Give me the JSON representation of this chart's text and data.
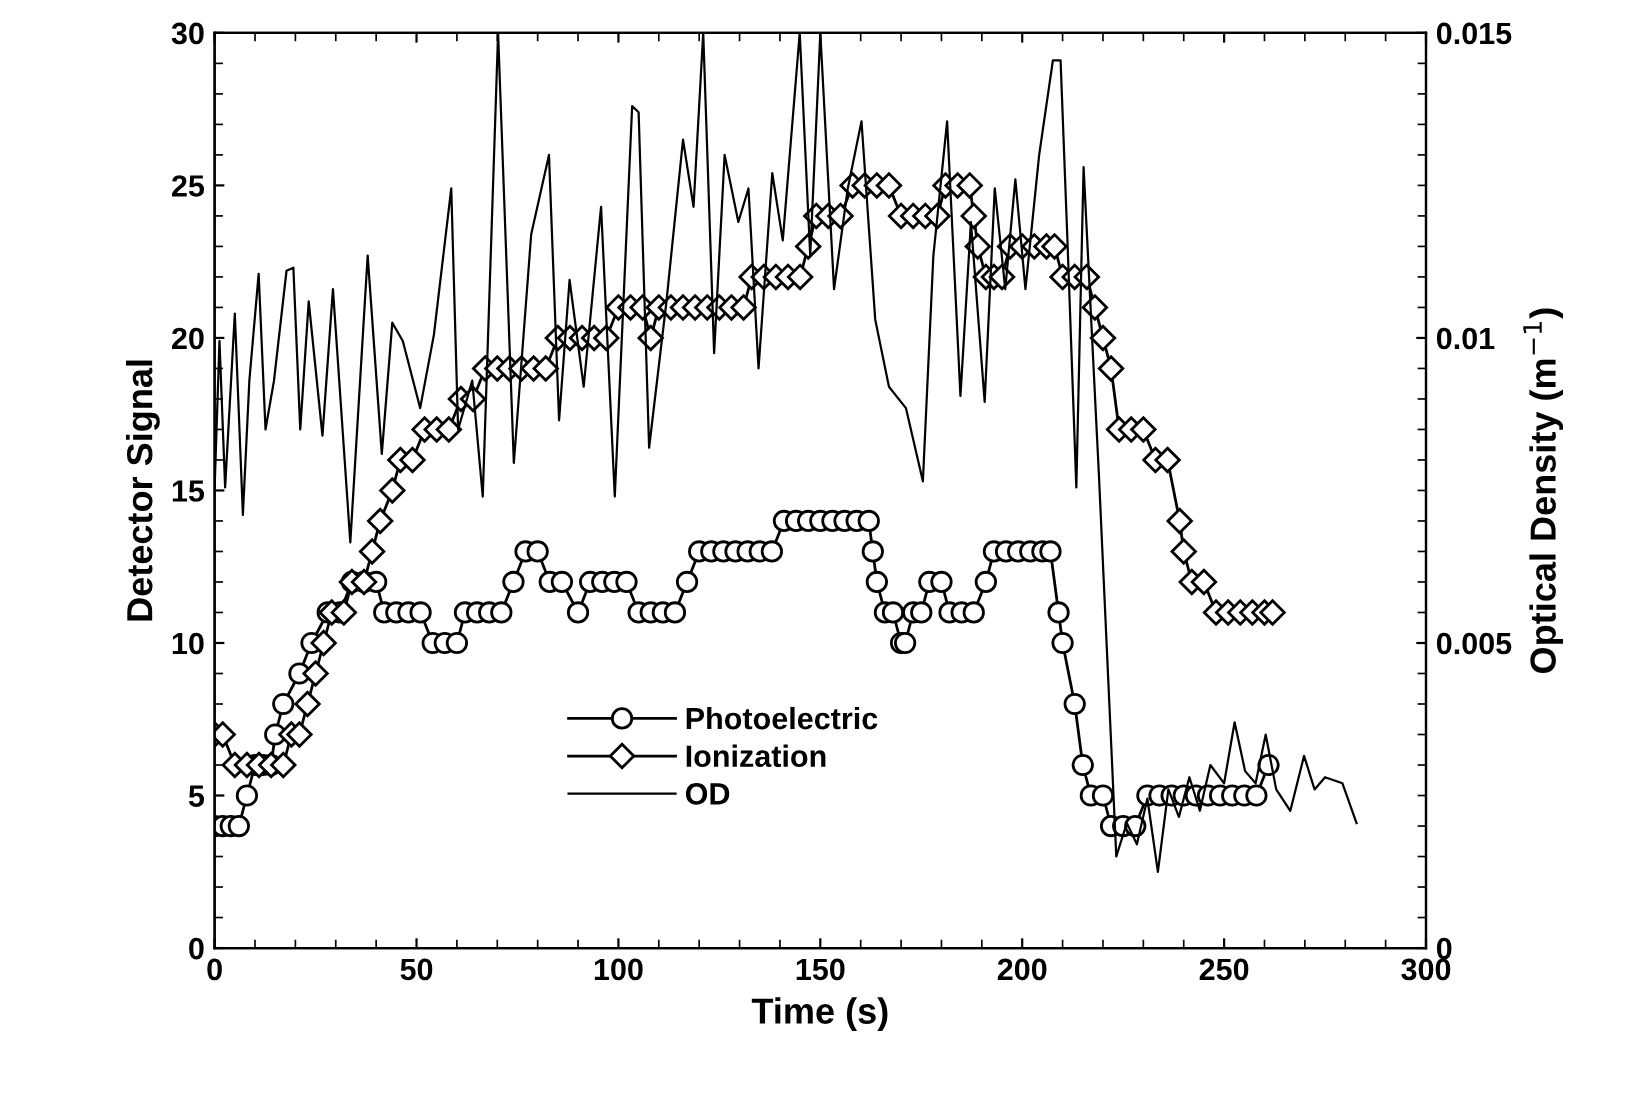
{
  "chart_data": {
    "type": "line",
    "xlabel": "Time (s)",
    "ylabel": "Detector Signal",
    "y2label": "Optical Density (m$^{−1}$)",
    "xlim": [
      0,
      300
    ],
    "xticks": [
      0,
      50,
      100,
      150,
      200,
      250,
      300
    ],
    "ylim": [
      0,
      30
    ],
    "yticks": [
      0,
      5,
      10,
      15,
      20,
      25,
      30
    ],
    "y2lim": [
      0,
      0.015
    ],
    "y2ticks": [
      0,
      0.005,
      0.01,
      0.015
    ],
    "grid": false,
    "legend": "bottom",
    "series": [
      {
        "name": "Photoelectric",
        "color": "#000000",
        "marker": "circle",
        "x": [
          0,
          2,
          4,
          6,
          8,
          10,
          12,
          14,
          15,
          17,
          21,
          24,
          28,
          31,
          34,
          37,
          40,
          42,
          45,
          48,
          51,
          54,
          57,
          60,
          62,
          65,
          68,
          71,
          74,
          77,
          80,
          83,
          86,
          90,
          93,
          96,
          99,
          102,
          105,
          108,
          111,
          114,
          117,
          120,
          123,
          126,
          129,
          132,
          135,
          138,
          141,
          144,
          147,
          150,
          153,
          156,
          159,
          162,
          163,
          164,
          166,
          168,
          170,
          171,
          173,
          175,
          177,
          180,
          182,
          185,
          188,
          191,
          193,
          196,
          199,
          202,
          205,
          207,
          209,
          210,
          213,
          215,
          217,
          220,
          222,
          225,
          228,
          231,
          234,
          237,
          240,
          243,
          246,
          249,
          252,
          255,
          258,
          261
        ],
        "values": [
          4,
          4,
          4,
          4,
          5,
          6,
          6,
          6,
          7,
          8,
          9,
          10,
          11,
          11,
          12,
          12,
          12,
          11,
          11,
          11,
          11,
          10,
          10,
          10,
          11,
          11,
          11,
          11,
          12,
          13,
          13,
          12,
          12,
          11,
          12,
          12,
          12,
          12,
          11,
          11,
          11,
          11,
          12,
          13,
          13,
          13,
          13,
          13,
          13,
          13,
          14,
          14,
          14,
          14,
          14,
          14,
          14,
          14,
          13,
          12,
          11,
          11,
          10,
          10,
          11,
          11,
          12,
          12,
          11,
          11,
          11,
          12,
          13,
          13,
          13,
          13,
          13,
          13,
          11,
          10,
          8,
          6,
          5,
          5,
          4,
          4,
          4,
          5,
          5,
          5,
          5,
          5,
          5,
          5,
          5,
          5,
          5,
          6
        ]
      },
      {
        "name": "Ionization",
        "color": "#000000",
        "marker": "diamond",
        "x": [
          0,
          2,
          5,
          8,
          11,
          14,
          17,
          19,
          21,
          23,
          25,
          27,
          29,
          32,
          34,
          37,
          39,
          41,
          44,
          46,
          49,
          52,
          55,
          58,
          61,
          64,
          67,
          70,
          73,
          76,
          79,
          82,
          85,
          88,
          91,
          94,
          97,
          100,
          103,
          106,
          108,
          110,
          113,
          116,
          119,
          122,
          125,
          128,
          131,
          133,
          136,
          139,
          142,
          145,
          147,
          149,
          152,
          155,
          158,
          161,
          164,
          167,
          170,
          173,
          176,
          179,
          181,
          184,
          187,
          188,
          189,
          191,
          193,
          195,
          197,
          200,
          203,
          206,
          208,
          210,
          213,
          216,
          218,
          220,
          222,
          224,
          227,
          230,
          233,
          236,
          239,
          240,
          242,
          245,
          248,
          251,
          254,
          257,
          260,
          262
        ],
        "values": [
          7,
          7,
          6,
          6,
          6,
          6,
          6,
          7,
          7,
          8,
          9,
          10,
          11,
          11,
          12,
          12,
          13,
          14,
          15,
          16,
          16,
          17,
          17,
          17,
          18,
          18,
          19,
          19,
          19,
          19,
          19,
          19,
          20,
          20,
          20,
          20,
          20,
          21,
          21,
          21,
          20,
          21,
          21,
          21,
          21,
          21,
          21,
          21,
          21,
          22,
          22,
          22,
          22,
          22,
          23,
          24,
          24,
          24,
          25,
          25,
          25,
          25,
          24,
          24,
          24,
          24,
          25,
          25,
          25,
          24,
          23,
          22,
          22,
          22,
          23,
          23,
          23,
          23,
          23,
          22,
          22,
          22,
          21,
          20,
          19,
          17,
          17,
          17,
          16,
          16,
          14,
          13,
          12,
          12,
          11,
          11,
          11,
          11,
          11,
          11
        ]
      },
      {
        "name": "OD",
        "color": "#000000",
        "marker": "none",
        "axis": "y2",
        "x": [
          0,
          1.2,
          2.6,
          5,
          7,
          8.6,
          10.9,
          12.6,
          14.7,
          17.8,
          19.5,
          21.2,
          23.3,
          26.7,
          29.3,
          33.6,
          37.9,
          41.4,
          44,
          46.6,
          50.9,
          54.3,
          58.6,
          60.3,
          63.8,
          66.4,
          70.2,
          74.1,
          78.4,
          82.8,
          85.3,
          87.9,
          91.4,
          95.7,
          99.1,
          103.4,
          105,
          107.6,
          111.9,
          116,
          118.6,
          121,
          123.7,
          126.3,
          129.7,
          132.2,
          134.7,
          138.1,
          140.7,
          144.9,
          147.5,
          150,
          153.4,
          156.8,
          160.2,
          163.6,
          167,
          171.2,
          175.4,
          178,
          181.4,
          184.7,
          187.3,
          190.7,
          193.2,
          195.8,
          198.3,
          200.8,
          204.2,
          207.6,
          209.5,
          211.2,
          213.4,
          215.2,
          219,
          223.3,
          225.9,
          228.4,
          231,
          233.6,
          236.2,
          238.8,
          241.4,
          244,
          246.6,
          250,
          252.6,
          255.2,
          257.8,
          260.3,
          262.9,
          266.4,
          269.8,
          272.4,
          275,
          279.3,
          282.8
        ],
        "values": [
          0.00755,
          0.00995,
          0.00755,
          0.0104,
          0.0071,
          0.0093,
          0.01105,
          0.0085,
          0.0093,
          0.0111,
          0.01115,
          0.0085,
          0.0106,
          0.0084,
          0.0108,
          0.00665,
          0.01135,
          0.0081,
          0.01025,
          0.00995,
          0.00885,
          0.01005,
          0.01245,
          0.0085,
          0.0093,
          0.0074,
          0.015,
          0.00795,
          0.0117,
          0.013,
          0.00865,
          0.01095,
          0.0092,
          0.01215,
          0.0074,
          0.0138,
          0.0137,
          0.0082,
          0.0106,
          0.01325,
          0.01215,
          0.015,
          0.00975,
          0.013,
          0.0119,
          0.01245,
          0.0095,
          0.0127,
          0.0116,
          0.015,
          0.01135,
          0.015,
          0.0108,
          0.01245,
          0.01355,
          0.0103,
          0.0092,
          0.00885,
          0.00765,
          0.01135,
          0.01355,
          0.00905,
          0.0119,
          0.00895,
          0.01245,
          0.0108,
          0.0126,
          0.0108,
          0.013,
          0.01455,
          0.01455,
          0.0116,
          0.00755,
          0.0128,
          0.00775,
          0.0015,
          0.00205,
          0.0017,
          0.00245,
          0.00125,
          0.0026,
          0.00215,
          0.0028,
          0.00225,
          0.003,
          0.0027,
          0.0037,
          0.0029,
          0.0027,
          0.0035,
          0.0026,
          0.00225,
          0.00315,
          0.0026,
          0.0028,
          0.0027,
          0.00205
        ]
      }
    ]
  }
}
